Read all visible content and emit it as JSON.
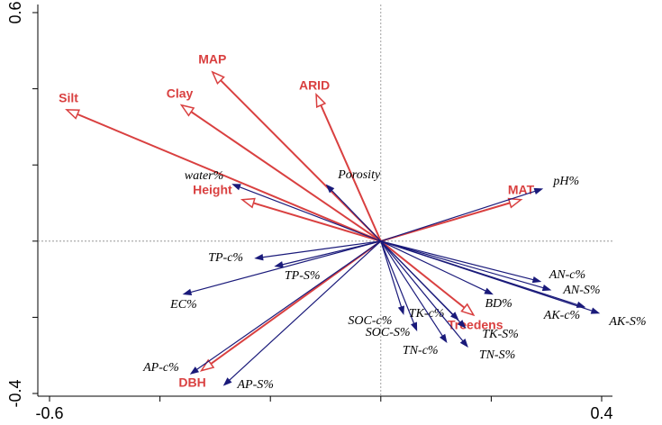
{
  "chart_data": {
    "type": "biplot",
    "xlim": [
      -0.6,
      0.4
    ],
    "ylim": [
      -0.4,
      0.6
    ],
    "xticks": [
      -0.6,
      {
        "value": -0.4,
        "label": null
      },
      {
        "value": -0.2,
        "label": null
      },
      {
        "value": 0,
        "label": null
      },
      {
        "value": 0.2,
        "label": null
      },
      0.4
    ],
    "yticks": [
      -0.4,
      {
        "value": -0.2,
        "label": null
      },
      {
        "value": 0,
        "label": null
      },
      {
        "value": 0.2,
        "label": null
      },
      {
        "value": 0.4,
        "label": null
      },
      0.6
    ],
    "series": [
      {
        "color": "#d94040",
        "labels": [
          "Silt",
          "Clay",
          "MAP",
          "ARID",
          "Height",
          "MAT",
          "Treedens",
          "DBH"
        ],
        "x": [
          -0.569,
          -0.361,
          -0.305,
          -0.117,
          -0.251,
          0.254,
          0.168,
          -0.325
        ],
        "y": [
          0.345,
          0.357,
          0.444,
          0.385,
          0.109,
          0.109,
          -0.194,
          -0.34
        ]
      },
      {
        "color": "#1a1a7a",
        "labels": [
          "water%",
          "Porosity",
          "pH%",
          "TP-c%",
          "TP-S%",
          "EC%",
          "AN-c%",
          "AN-S%",
          "AK-c%",
          "AK-S%",
          "BD%",
          "SOC-c%",
          "SOC-S%",
          "TK-c%",
          "TK-S%",
          "TN-c%",
          "TN-S%",
          "AP-c%",
          "AP-S%"
        ],
        "x": [
          -0.268,
          -0.098,
          0.292,
          -0.227,
          -0.191,
          -0.357,
          0.289,
          0.307,
          0.369,
          0.395,
          0.202,
          0.041,
          0.065,
          0.14,
          0.153,
          0.119,
          0.157,
          -0.344,
          -0.284
        ],
        "y": [
          0.149,
          0.147,
          0.137,
          -0.045,
          -0.066,
          -0.139,
          -0.106,
          -0.128,
          -0.173,
          -0.189,
          -0.139,
          -0.191,
          -0.234,
          -0.206,
          -0.227,
          -0.265,
          -0.277,
          -0.348,
          -0.378
        ]
      }
    ]
  }
}
